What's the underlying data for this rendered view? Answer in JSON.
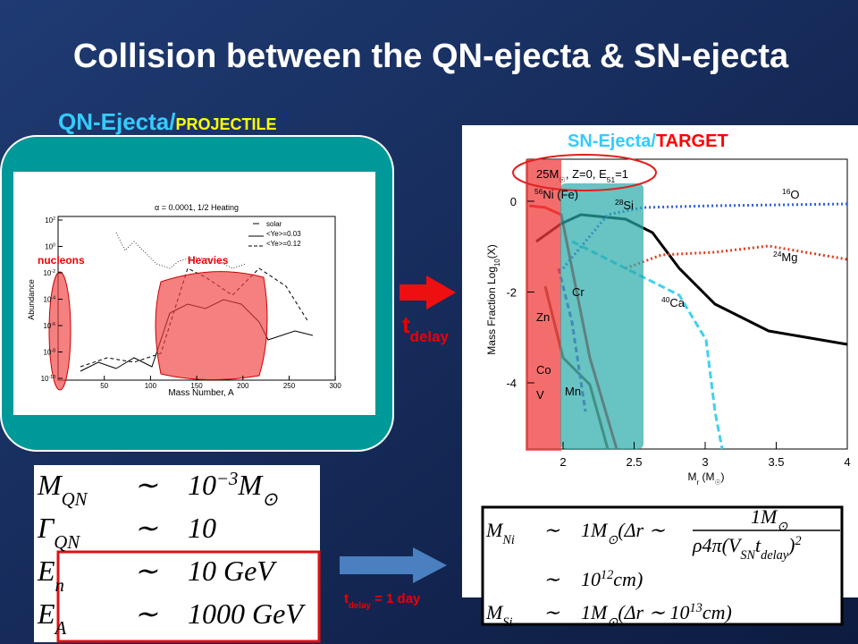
{
  "title": "Collision between the QN-ejecta & SN-ejecta",
  "left_panel": {
    "heading": "QN-Ejecta/",
    "heading_emphasis": "PROJECTILE",
    "plot": {
      "title": "α = 0.0001, 1/2 Heating",
      "x_label": "Mass Number, A",
      "y_label": "Abundance",
      "x_ticks": [
        "50",
        "100",
        "150",
        "200",
        "250",
        "300"
      ],
      "y_ticks": [
        [
          {
            "t": "10"
          },
          {
            "sup": "2"
          }
        ],
        [
          {
            "t": "10"
          },
          {
            "sup": "0"
          }
        ],
        [
          {
            "t": "10"
          },
          {
            "sup": "-2"
          }
        ],
        [
          {
            "t": "10"
          },
          {
            "sup": "-4"
          }
        ],
        [
          {
            "t": "10"
          },
          {
            "sup": "-6"
          }
        ],
        [
          {
            "t": "10"
          },
          {
            "sup": "-8"
          }
        ],
        [
          {
            "t": "10"
          },
          {
            "sup": "-10"
          }
        ]
      ],
      "legend": [
        "solar",
        "<Ye>=0.03",
        "<Ye>=0.12"
      ],
      "annotations": [
        "nucleons",
        "Heavies"
      ]
    }
  },
  "right_panel": {
    "heading": "SN-Ejecta/",
    "heading_emphasis": "TARGET",
    "plot": {
      "title": [
        {
          "t": "25M"
        },
        {
          "sub": "☉"
        },
        {
          "t": ", Z=0, E"
        },
        {
          "sub": "51"
        },
        {
          "t": "=1"
        }
      ],
      "y_label": [
        {
          "t": "Mass Fraction Log"
        },
        {
          "sub": "10"
        },
        {
          "t": "(X)"
        }
      ],
      "x_label": [
        {
          "t": "M"
        },
        {
          "sub": "r"
        },
        {
          "t": " (M"
        },
        {
          "sub": "☉"
        },
        {
          "t": ")"
        }
      ],
      "y_ticks": [
        "0",
        "-2",
        "-4"
      ],
      "x_ticks": [
        "2",
        "2.5",
        "3",
        "3.5",
        "4"
      ],
      "labels": [
        [
          {
            "sup": "56"
          },
          {
            "t": "Ni (Fe)"
          }
        ],
        [
          {
            "sup": "28"
          },
          {
            "t": "Si"
          }
        ],
        [
          {
            "sup": "16"
          },
          {
            "t": "O"
          }
        ],
        [
          {
            "sup": "24"
          },
          {
            "t": "Mg"
          }
        ],
        [
          {
            "sup": "40"
          },
          {
            "t": "Ca"
          }
        ],
        [
          {
            "t": "Cr"
          }
        ],
        [
          {
            "t": "Mn"
          }
        ],
        [
          {
            "t": "Zn"
          }
        ],
        [
          {
            "t": "Co"
          }
        ],
        [
          {
            "t": "V"
          }
        ]
      ]
    }
  },
  "delay_label": [
    {
      "t": "t"
    },
    {
      "sub": "delay"
    }
  ],
  "delay_caption": [
    {
      "t": "t"
    },
    {
      "sub": "delay"
    },
    {
      "t": " = 1 day"
    }
  ],
  "left_equations": [
    {
      "lhs": [
        {
          "t": "M"
        },
        {
          "sub": "QN"
        }
      ],
      "rel": "∼",
      "rhs": [
        {
          "t": "10"
        },
        {
          "sup": "−3"
        },
        {
          "t": "M"
        },
        {
          "sub": "⊙"
        }
      ]
    },
    {
      "lhs": [
        {
          "t": "Γ"
        },
        {
          "sub": "QN"
        }
      ],
      "rel": "∼",
      "rhs": [
        {
          "t": "10"
        }
      ]
    },
    {
      "lhs": [
        {
          "t": "E"
        },
        {
          "sub": "n"
        }
      ],
      "rel": "∼",
      "rhs": [
        {
          "t": "10 GeV"
        }
      ]
    },
    {
      "lhs": [
        {
          "t": "E"
        },
        {
          "sub": "A"
        }
      ],
      "rel": "∼",
      "rhs": [
        {
          "t": "1000 GeV"
        }
      ]
    }
  ],
  "right_equations": {
    "row1": {
      "lhs": [
        {
          "t": "M"
        },
        {
          "sub": "Ni"
        }
      ],
      "rel": "∼",
      "rhs": [
        {
          "t": "1M"
        },
        {
          "sub": "⊙"
        },
        {
          "t": "(Δr ∼"
        }
      ],
      "numerator": [
        {
          "t": "1M"
        },
        {
          "sub": "⊙"
        }
      ],
      "denominator": [
        {
          "t": "ρ4π(V"
        },
        {
          "sub": "SN"
        },
        {
          "t": "t"
        },
        {
          "sub": "delay"
        },
        {
          "t": ")"
        },
        {
          "sup": "2"
        }
      ]
    },
    "row2": {
      "rel": "∼",
      "rhs": [
        {
          "t": "10"
        },
        {
          "sup": "12"
        },
        {
          "t": "cm)"
        }
      ]
    },
    "row3": {
      "lhs": [
        {
          "t": "M"
        },
        {
          "sub": "Si"
        }
      ],
      "rel": "∼",
      "rhs": [
        {
          "t": "1M"
        },
        {
          "sub": "⊙"
        },
        {
          "t": "(Δr ∼ 10"
        },
        {
          "sup": "13"
        },
        {
          "t": "cm)"
        }
      ]
    }
  }
}
